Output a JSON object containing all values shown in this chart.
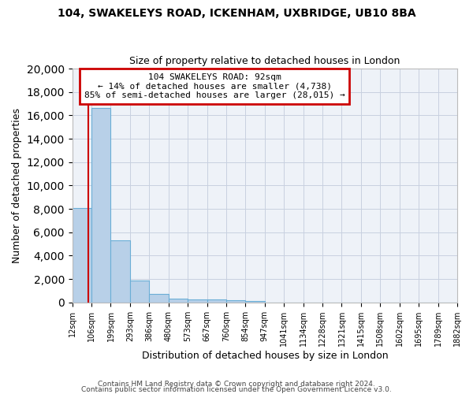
{
  "title1": "104, SWAKELEYS ROAD, ICKENHAM, UXBRIDGE, UB10 8BA",
  "title2": "Size of property relative to detached houses in London",
  "xlabel": "Distribution of detached houses by size in London",
  "ylabel": "Number of detached properties",
  "bin_labels": [
    "12sqm",
    "106sqm",
    "199sqm",
    "293sqm",
    "386sqm",
    "480sqm",
    "573sqm",
    "667sqm",
    "760sqm",
    "854sqm",
    "947sqm",
    "1041sqm",
    "1134sqm",
    "1228sqm",
    "1321sqm",
    "1415sqm",
    "1508sqm",
    "1602sqm",
    "1695sqm",
    "1789sqm",
    "1882sqm"
  ],
  "bar_values": [
    8100,
    16600,
    5300,
    1850,
    700,
    350,
    280,
    220,
    170,
    130,
    0,
    0,
    0,
    0,
    0,
    0,
    0,
    0,
    0,
    0
  ],
  "bar_color": "#b8d0e8",
  "bar_edge_color": "#6baed6",
  "annotation_line1": "104 SWAKELEYS ROAD: 92sqm",
  "annotation_line2": "← 14% of detached houses are smaller (4,738)",
  "annotation_line3": "85% of semi-detached houses are larger (28,015) →",
  "vline_color": "#cc0000",
  "ylim": [
    0,
    20000
  ],
  "yticks": [
    0,
    2000,
    4000,
    6000,
    8000,
    10000,
    12000,
    14000,
    16000,
    18000,
    20000
  ],
  "footer1": "Contains HM Land Registry data © Crown copyright and database right 2024.",
  "footer2": "Contains public sector information licensed under the Open Government Licence v3.0.",
  "bg_color": "#eef2f8",
  "annotation_box_edge": "#cc0000",
  "grid_color": "#c8d0e0"
}
